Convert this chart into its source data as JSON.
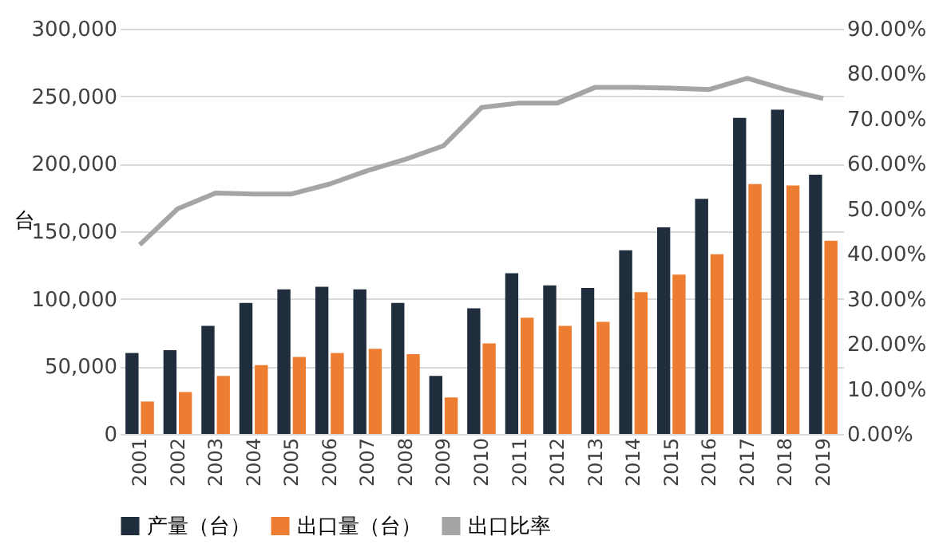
{
  "chart_data": {
    "type": "bar",
    "ylabel": "台",
    "categories": [
      "2001",
      "2002",
      "2003",
      "2004",
      "2005",
      "2006",
      "2007",
      "2008",
      "2009",
      "2010",
      "2011",
      "2012",
      "2013",
      "2014",
      "2015",
      "2016",
      "2017",
      "2018",
      "2019"
    ],
    "series": [
      {
        "name": "产量（台）",
        "color": "#1f2d3d",
        "values": [
          60000,
          62000,
          80000,
          97000,
          107000,
          109000,
          107000,
          97000,
          43000,
          93000,
          119000,
          110000,
          108000,
          136000,
          153000,
          174000,
          234000,
          240000,
          192000
        ]
      },
      {
        "name": "出口量（台）",
        "color": "#ed7d31",
        "values": [
          24000,
          31000,
          43000,
          51000,
          57000,
          60000,
          63000,
          59000,
          27000,
          67000,
          86000,
          80000,
          83000,
          105000,
          118000,
          133000,
          185000,
          184000,
          143000
        ]
      },
      {
        "name": "出口比率",
        "type": "line",
        "axis": "y2",
        "color": "#a5a5a5",
        "values": [
          42,
          50,
          53.5,
          53.3,
          53.3,
          55.5,
          58.5,
          61,
          64,
          72.5,
          73.5,
          73.5,
          77,
          77,
          76.8,
          76.5,
          79,
          76.5,
          74.5
        ]
      }
    ],
    "ylim": [
      0,
      300000
    ],
    "yticks": [
      {
        "value": 0,
        "label": "0"
      },
      {
        "value": 50000,
        "label": "50,000"
      },
      {
        "value": 100000,
        "label": "100,000"
      },
      {
        "value": 150000,
        "label": "150,000"
      },
      {
        "value": 200000,
        "label": "200,000"
      },
      {
        "value": 250000,
        "label": "250,000"
      },
      {
        "value": 300000,
        "label": "300,000"
      }
    ],
    "y2lim": [
      0,
      90
    ],
    "y2ticks": [
      {
        "value": 0,
        "label": "0.00%"
      },
      {
        "value": 10,
        "label": "10.00%"
      },
      {
        "value": 20,
        "label": "20.00%"
      },
      {
        "value": 30,
        "label": "30.00%"
      },
      {
        "value": 40,
        "label": "40.00%"
      },
      {
        "value": 50,
        "label": "50.00%"
      },
      {
        "value": 60,
        "label": "60.00%"
      },
      {
        "value": 70,
        "label": "70.00%"
      },
      {
        "value": 80,
        "label": "80.00%"
      },
      {
        "value": 90,
        "label": "90.00%"
      }
    ],
    "grid": "y",
    "legend": "bottom"
  }
}
